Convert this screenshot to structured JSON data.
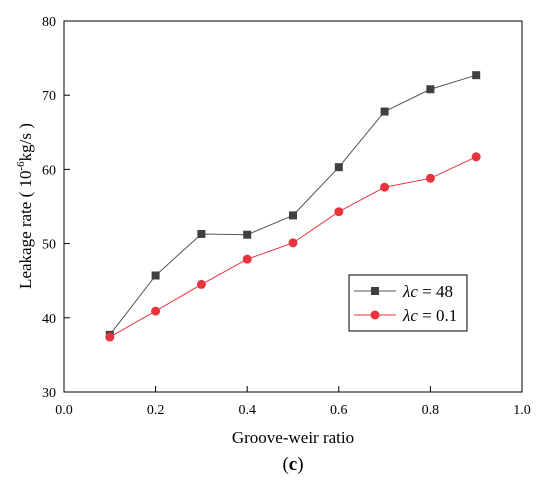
{
  "chart_data": {
    "type": "line",
    "xlabel": "Groove-weir ratio",
    "ylabel_prefix": "Leakage rate ( 10",
    "ylabel_exponent": "-6",
    "ylabel_suffix": "kg/s )",
    "panel_label": "(c)",
    "panel_label_parts": {
      "open": "(",
      "letter": "c",
      "close": ")"
    },
    "xlim": [
      0.0,
      1.0
    ],
    "ylim": [
      30,
      80
    ],
    "x_ticks": [
      0.0,
      0.2,
      0.4,
      0.6,
      0.8,
      1.0
    ],
    "x_tick_labels": [
      "0.0",
      "0.2",
      "0.4",
      "0.6",
      "0.8",
      "1.0"
    ],
    "y_ticks": [
      30,
      40,
      50,
      60,
      70,
      80
    ],
    "y_tick_labels": [
      "30",
      "40",
      "50",
      "60",
      "70",
      "80"
    ],
    "legend_position": "lower-right",
    "grid": false,
    "x": [
      0.1,
      0.2,
      0.3,
      0.4,
      0.5,
      0.6,
      0.7,
      0.8,
      0.9
    ],
    "series": [
      {
        "name": "λc = 48",
        "label_parts": {
          "symbol": "λ",
          "variable": "c",
          "rest": " = 48"
        },
        "marker": "square",
        "color": "#404040",
        "line_color": "#555555",
        "values": [
          37.7,
          45.7,
          51.3,
          51.2,
          53.8,
          60.3,
          67.8,
          70.8,
          72.7
        ]
      },
      {
        "name": "λc = 0.1",
        "label_parts": {
          "symbol": "λ",
          "variable": "c",
          "rest": " = 0.1"
        },
        "marker": "circle",
        "color": "#e8343c",
        "line_color": "#e8343c",
        "values": [
          37.4,
          40.9,
          44.5,
          47.9,
          50.1,
          54.3,
          57.6,
          58.8,
          61.7
        ]
      }
    ]
  }
}
